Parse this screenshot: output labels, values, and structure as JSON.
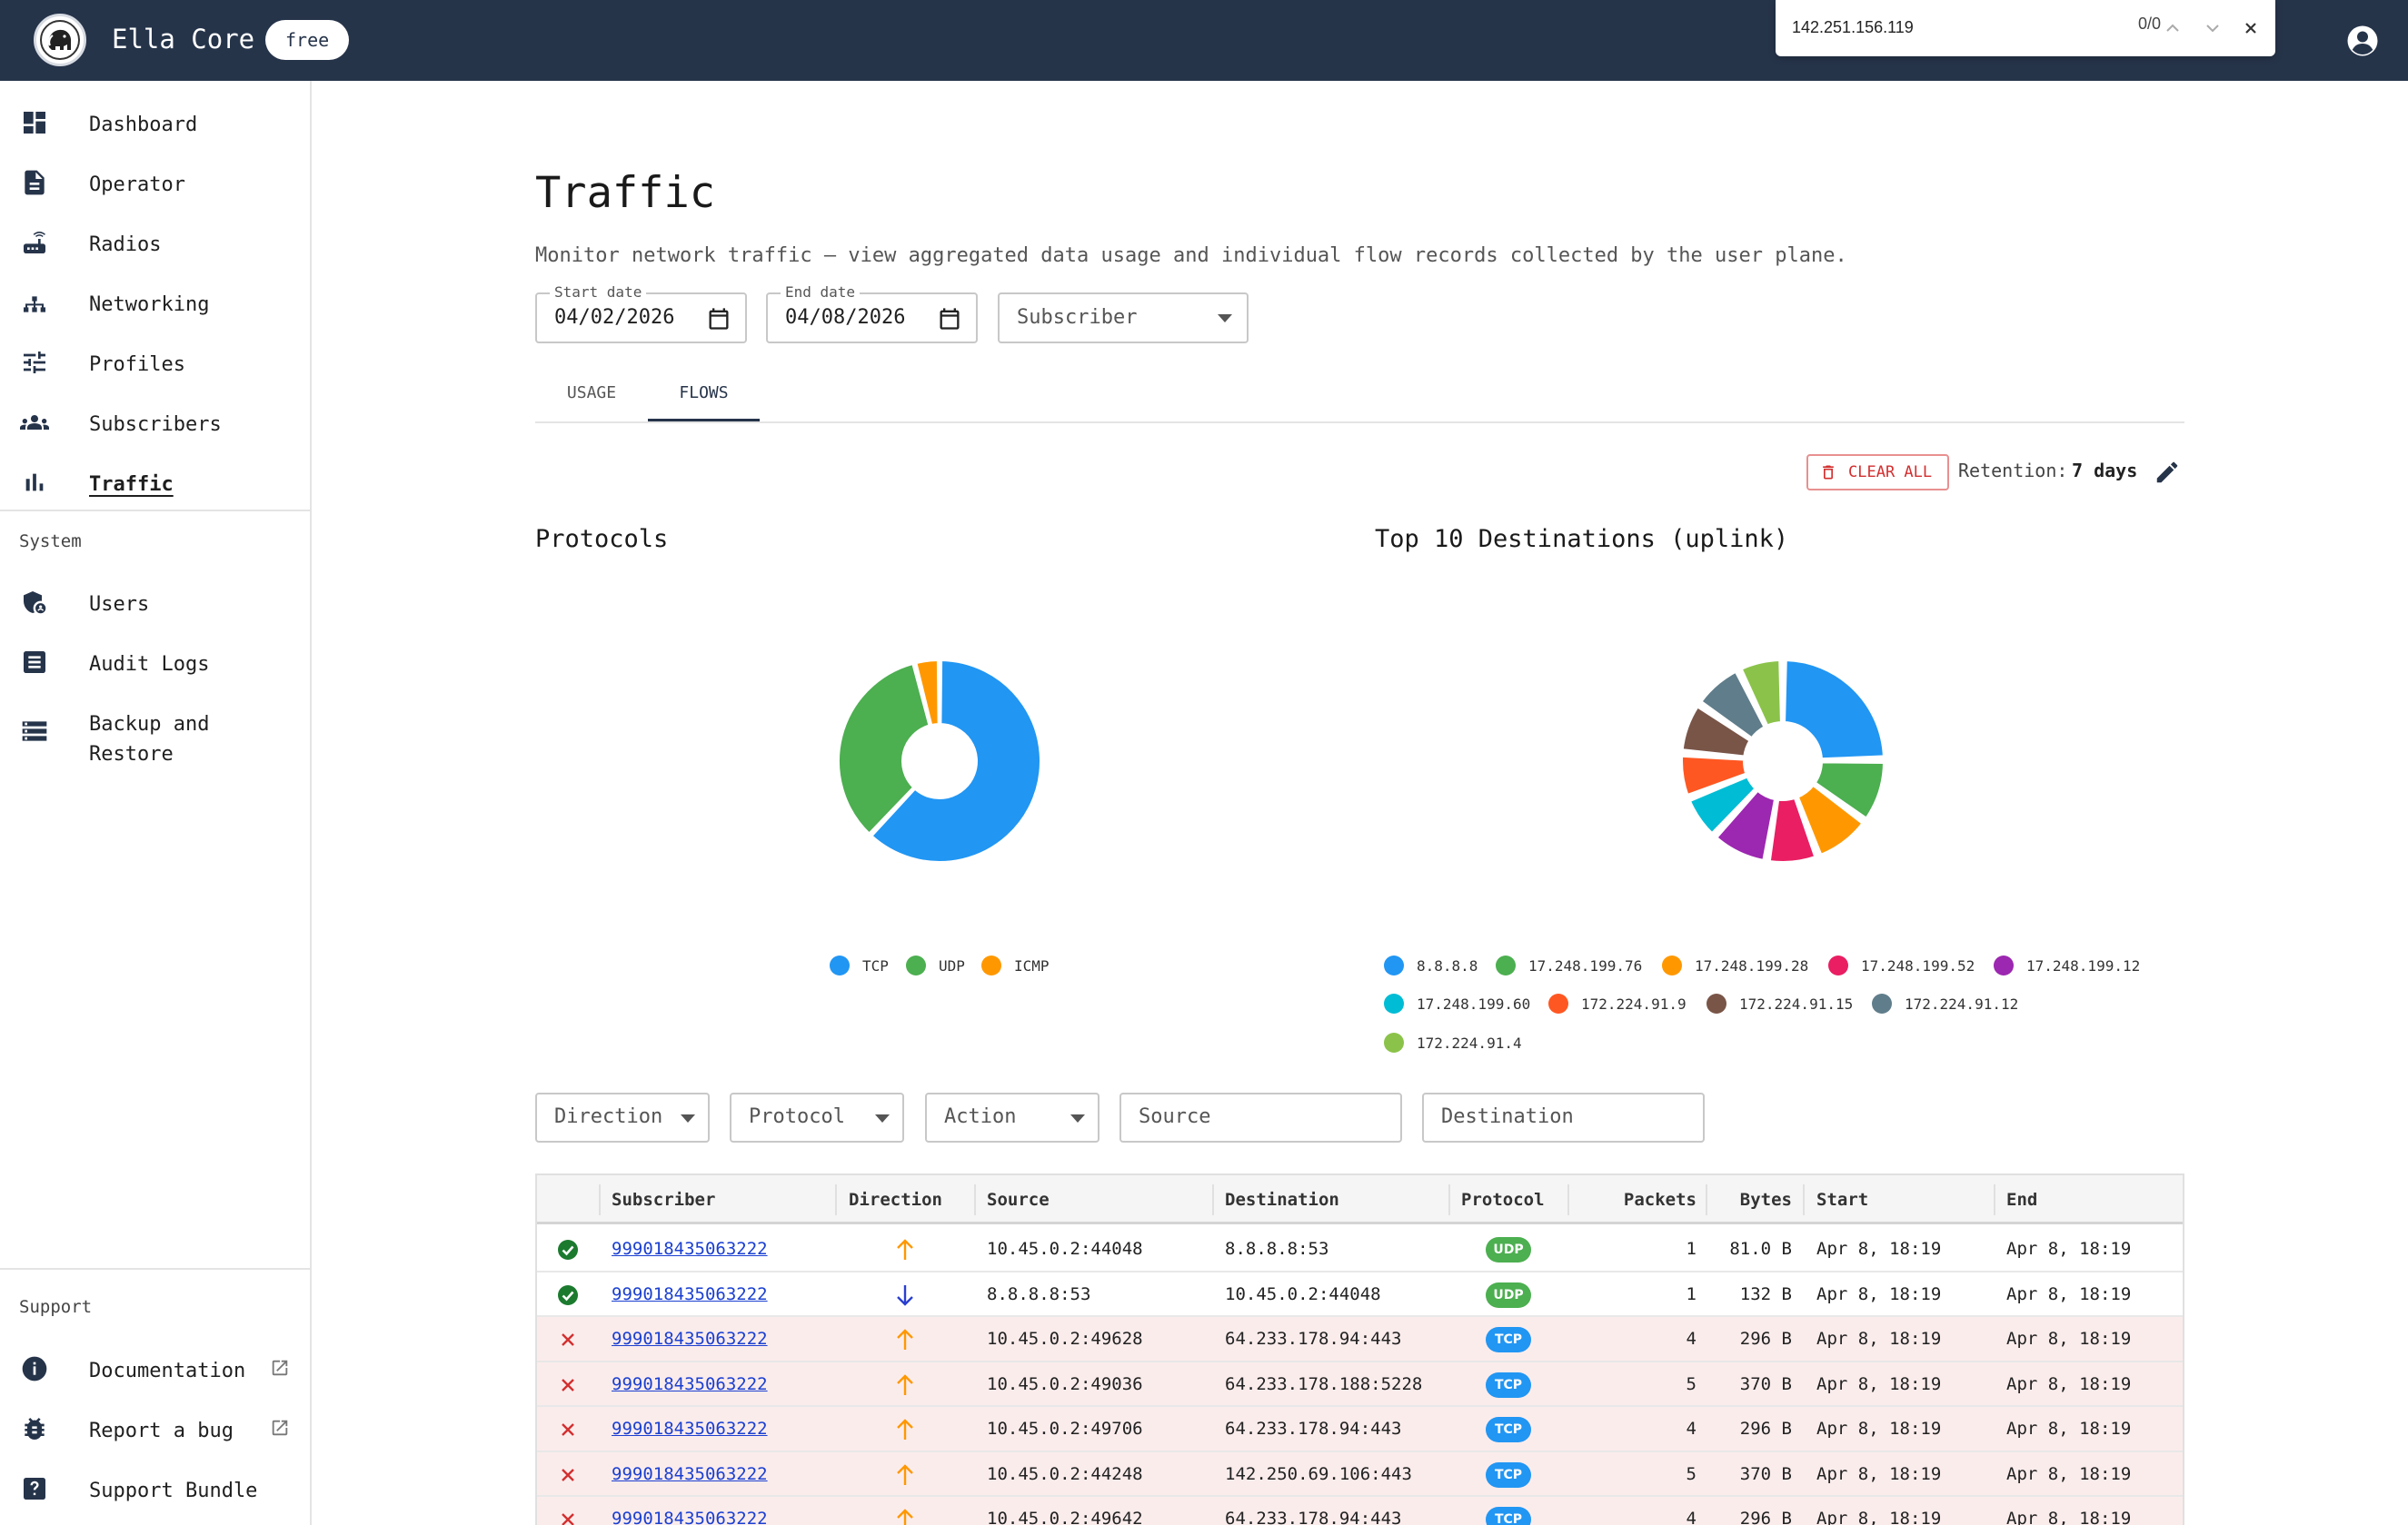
{
  "app": {
    "title": "Ella Core",
    "plan_badge": "free"
  },
  "findbar": {
    "query": "142.251.156.119",
    "count": "0/0"
  },
  "sidebar": {
    "main_items": [
      {
        "label": "Dashboard",
        "icon": "dashboard-icon"
      },
      {
        "label": "Operator",
        "icon": "operator-icon"
      },
      {
        "label": "Radios",
        "icon": "radio-router-icon"
      },
      {
        "label": "Networking",
        "icon": "network-tree-icon"
      },
      {
        "label": "Profiles",
        "icon": "sliders-icon"
      },
      {
        "label": "Subscribers",
        "icon": "group-icon"
      },
      {
        "label": "Traffic",
        "icon": "bar-chart-icon",
        "active": true
      }
    ],
    "system_heading": "System",
    "system_items": [
      {
        "label": "Users",
        "icon": "admin-shield-icon"
      },
      {
        "label": "Audit Logs",
        "icon": "audit-log-icon"
      },
      {
        "label": "Backup and",
        "label2": "Restore",
        "icon": "storage-icon"
      }
    ],
    "support_heading": "Support",
    "support_items": [
      {
        "label": "Documentation",
        "icon": "info-icon",
        "external": true
      },
      {
        "label": "Report a bug",
        "icon": "bug-icon",
        "external": true
      },
      {
        "label": "Support Bundle",
        "icon": "help-box-icon"
      }
    ]
  },
  "page": {
    "title": "Traffic",
    "subtitle": "Monitor network traffic — view aggregated data usage and individual flow records collected by the user plane."
  },
  "filters_top": {
    "start_date_label": "Start date",
    "start_date_value": "04/02/2026",
    "end_date_label": "End date",
    "end_date_value": "04/08/2026",
    "subscriber_placeholder": "Subscriber"
  },
  "tabs": [
    {
      "label": "USAGE",
      "active": false
    },
    {
      "label": "FLOWS",
      "active": true
    }
  ],
  "actions": {
    "clear_all_label": "CLEAR ALL",
    "retention_label": "Retention:",
    "retention_value": "7 days"
  },
  "colors": {
    "topbar": "#26344a",
    "blue": "#2196f3",
    "green": "#4caf50",
    "orange": "#ff9800",
    "pink": "#e91e63",
    "purple": "#9c27b0",
    "cyan": "#00bcd4",
    "deep_orange": "#ff5722",
    "brown": "#795548",
    "blue_grey": "#607d8b",
    "light_green": "#8bc34a",
    "drop_row": "#fbecec",
    "allow_icon": "#1b7a2e",
    "drop_icon": "#d32f2f"
  },
  "chart_data": [
    {
      "type": "pie",
      "title": "Protocols",
      "categories": [
        "TCP",
        "UDP",
        "ICMP"
      ],
      "values": [
        62,
        34,
        4
      ],
      "colors": [
        "#2196f3",
        "#4caf50",
        "#ff9800"
      ],
      "legend_position": "bottom"
    },
    {
      "type": "pie",
      "title": "Top 10 Destinations (uplink)",
      "categories": [
        "8.8.8.8",
        "17.248.199.76",
        "17.248.199.28",
        "17.248.199.52",
        "17.248.199.12",
        "17.248.199.60",
        "172.224.91.9",
        "172.224.91.15",
        "172.224.91.12",
        "172.224.91.4"
      ],
      "values": [
        24,
        10,
        9,
        8,
        9,
        7,
        7,
        8,
        8,
        7
      ],
      "colors": [
        "#2196f3",
        "#4caf50",
        "#ff9800",
        "#e91e63",
        "#9c27b0",
        "#00bcd4",
        "#ff5722",
        "#795548",
        "#607d8b",
        "#8bc34a"
      ],
      "legend_position": "bottom"
    }
  ],
  "flow_filters": {
    "direction": "Direction",
    "protocol": "Protocol",
    "action": "Action",
    "source": "Source",
    "destination": "Destination"
  },
  "table": {
    "columns": [
      "Subscriber",
      "Direction",
      "Source",
      "Destination",
      "Protocol",
      "Packets",
      "Bytes",
      "Start",
      "End"
    ],
    "rows": [
      {
        "status": "allowed",
        "subscriber": "999018435063222",
        "direction": "up",
        "source": "10.45.0.2:44048",
        "destination": "8.8.8.8:53",
        "protocol": "UDP",
        "packets": "1",
        "bytes": "81.0 B",
        "start": "Apr 8, 18:19",
        "end": "Apr 8, 18:19"
      },
      {
        "status": "allowed",
        "subscriber": "999018435063222",
        "direction": "down",
        "source": "8.8.8.8:53",
        "destination": "10.45.0.2:44048",
        "protocol": "UDP",
        "packets": "1",
        "bytes": "132 B",
        "start": "Apr 8, 18:19",
        "end": "Apr 8, 18:19"
      },
      {
        "status": "dropped",
        "subscriber": "999018435063222",
        "direction": "up",
        "source": "10.45.0.2:49628",
        "destination": "64.233.178.94:443",
        "protocol": "TCP",
        "packets": "4",
        "bytes": "296 B",
        "start": "Apr 8, 18:19",
        "end": "Apr 8, 18:19"
      },
      {
        "status": "dropped",
        "subscriber": "999018435063222",
        "direction": "up",
        "source": "10.45.0.2:49036",
        "destination": "64.233.178.188:5228",
        "protocol": "TCP",
        "packets": "5",
        "bytes": "370 B",
        "start": "Apr 8, 18:19",
        "end": "Apr 8, 18:19"
      },
      {
        "status": "dropped",
        "subscriber": "999018435063222",
        "direction": "up",
        "source": "10.45.0.2:49706",
        "destination": "64.233.178.94:443",
        "protocol": "TCP",
        "packets": "4",
        "bytes": "296 B",
        "start": "Apr 8, 18:19",
        "end": "Apr 8, 18:19"
      },
      {
        "status": "dropped",
        "subscriber": "999018435063222",
        "direction": "up",
        "source": "10.45.0.2:44248",
        "destination": "142.250.69.106:443",
        "protocol": "TCP",
        "packets": "5",
        "bytes": "370 B",
        "start": "Apr 8, 18:19",
        "end": "Apr 8, 18:19"
      },
      {
        "status": "dropped",
        "subscriber": "999018435063222",
        "direction": "up",
        "source": "10.45.0.2:49642",
        "destination": "64.233.178.94:443",
        "protocol": "TCP",
        "packets": "4",
        "bytes": "296 B",
        "start": "Apr 8, 18:19",
        "end": "Apr 8, 18:19"
      }
    ]
  }
}
